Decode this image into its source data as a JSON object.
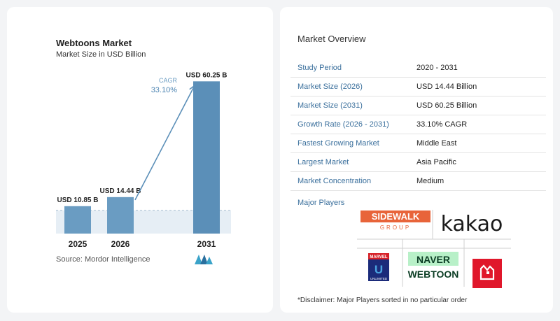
{
  "chart": {
    "title": "Webtoons Market",
    "subtitle": "Market Size in USD Billion",
    "source": "Source:  Mordor Intelligence",
    "cagr_label": "CAGR",
    "cagr_value": "33.10%"
  },
  "chart_data": {
    "type": "bar",
    "title": "Webtoons Market",
    "subtitle": "Market Size in USD Billion",
    "categories": [
      "2025",
      "2026",
      "2031"
    ],
    "values": [
      10.85,
      14.44,
      60.25
    ],
    "data_labels": [
      "USD 10.85 B",
      "USD 14.44 B",
      "USD 60.25 B"
    ],
    "ylim": [
      0,
      62
    ],
    "grid": false,
    "annotation": "CAGR 33.10%",
    "colors": {
      "bar": "#6a9cc2",
      "bar_last": "#5b8fb8",
      "arrow": "#5b8fb8"
    }
  },
  "overview": {
    "title": "Market Overview",
    "rows": [
      {
        "label": "Study Period",
        "value": "2020 - 2031"
      },
      {
        "label": "Market Size (2026)",
        "value": "USD 14.44 Billion"
      },
      {
        "label": "Market Size (2031)",
        "value": "USD 60.25 Billion"
      },
      {
        "label": "Growth Rate (2026 - 2031)",
        "value": "33.10% CAGR"
      },
      {
        "label": "Fastest Growing Market",
        "value": "Middle East"
      },
      {
        "label": "Largest Market",
        "value": "Asia Pacific"
      },
      {
        "label": "Market Concentration",
        "value": "Medium"
      }
    ],
    "players_label": "Major Players",
    "players": {
      "sidewalk_top": "SIDEWALK",
      "sidewalk_bottom": "GROUP",
      "kakao": "kakao",
      "marvel": "MARVEL",
      "marvel_u": "U",
      "marvel_sub": "UNLIMITED",
      "naver": "NAVER",
      "webtoon": "WEBTOON"
    },
    "disclaimer": "*Disclaimer: Major Players sorted in no particular order"
  }
}
